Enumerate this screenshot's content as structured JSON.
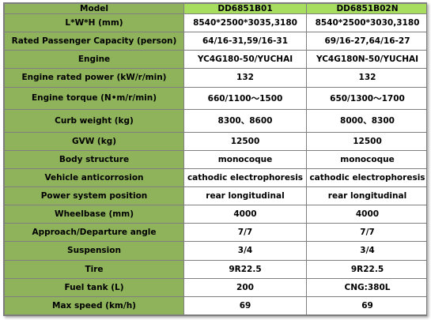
{
  "table": {
    "header": {
      "label": "Model",
      "models": [
        "DD6851B01",
        "DD6851B02N"
      ]
    },
    "rows": [
      {
        "label": "L*W*H (mm)",
        "values": [
          "8540*2500*3035,3180",
          "8540*2500*3030,3180"
        ]
      },
      {
        "label": "Rated Passenger Capacity (person)",
        "values": [
          "64/16-31,59/16-31",
          "69/16-27,64/16-27"
        ]
      },
      {
        "label": "Engine",
        "values": [
          "YC4G180-50/YUCHAI",
          "YC4G180N-50/YUCHAI"
        ]
      },
      {
        "label": "Engine rated power (kW/r/min)",
        "values": [
          "132",
          "132"
        ]
      },
      {
        "label": "Engine torque (N•m/r/min)",
        "values": [
          "660/1100～1500",
          "650/1300～1700"
        ]
      },
      {
        "label": "Curb weight (kg)",
        "values": [
          "8300、8600",
          "8000、8300"
        ]
      },
      {
        "label": "GVW (kg)",
        "values": [
          "12500",
          "12500"
        ]
      },
      {
        "label": "Body structure",
        "values": [
          "monocoque",
          "monocoque"
        ]
      },
      {
        "label": "Vehicle anticorrosion",
        "values": [
          "cathodic electrophoresis",
          "cathodic electrophoresis"
        ]
      },
      {
        "label": "Power system position",
        "values": [
          "rear longitudinal",
          "rear longitudinal"
        ]
      },
      {
        "label": "Wheelbase (mm)",
        "values": [
          "4000",
          "4000"
        ]
      },
      {
        "label": "Approach/Departure angle",
        "values": [
          "7/7",
          "7/7"
        ]
      },
      {
        "label": "Suspension",
        "values": [
          "3/4",
          "3/4"
        ]
      },
      {
        "label": "Tire",
        "values": [
          "9R22.5",
          "9R22.5"
        ]
      },
      {
        "label": "Fuel tank (L)",
        "values": [
          "200",
          "CNG:380L"
        ]
      },
      {
        "label": "Max speed (km/h)",
        "values": [
          "69",
          "69"
        ]
      }
    ]
  },
  "colors": {
    "label_bg": "#8eb35a",
    "header_model_bg": "#a8de60",
    "border": "#7f7f7f"
  }
}
